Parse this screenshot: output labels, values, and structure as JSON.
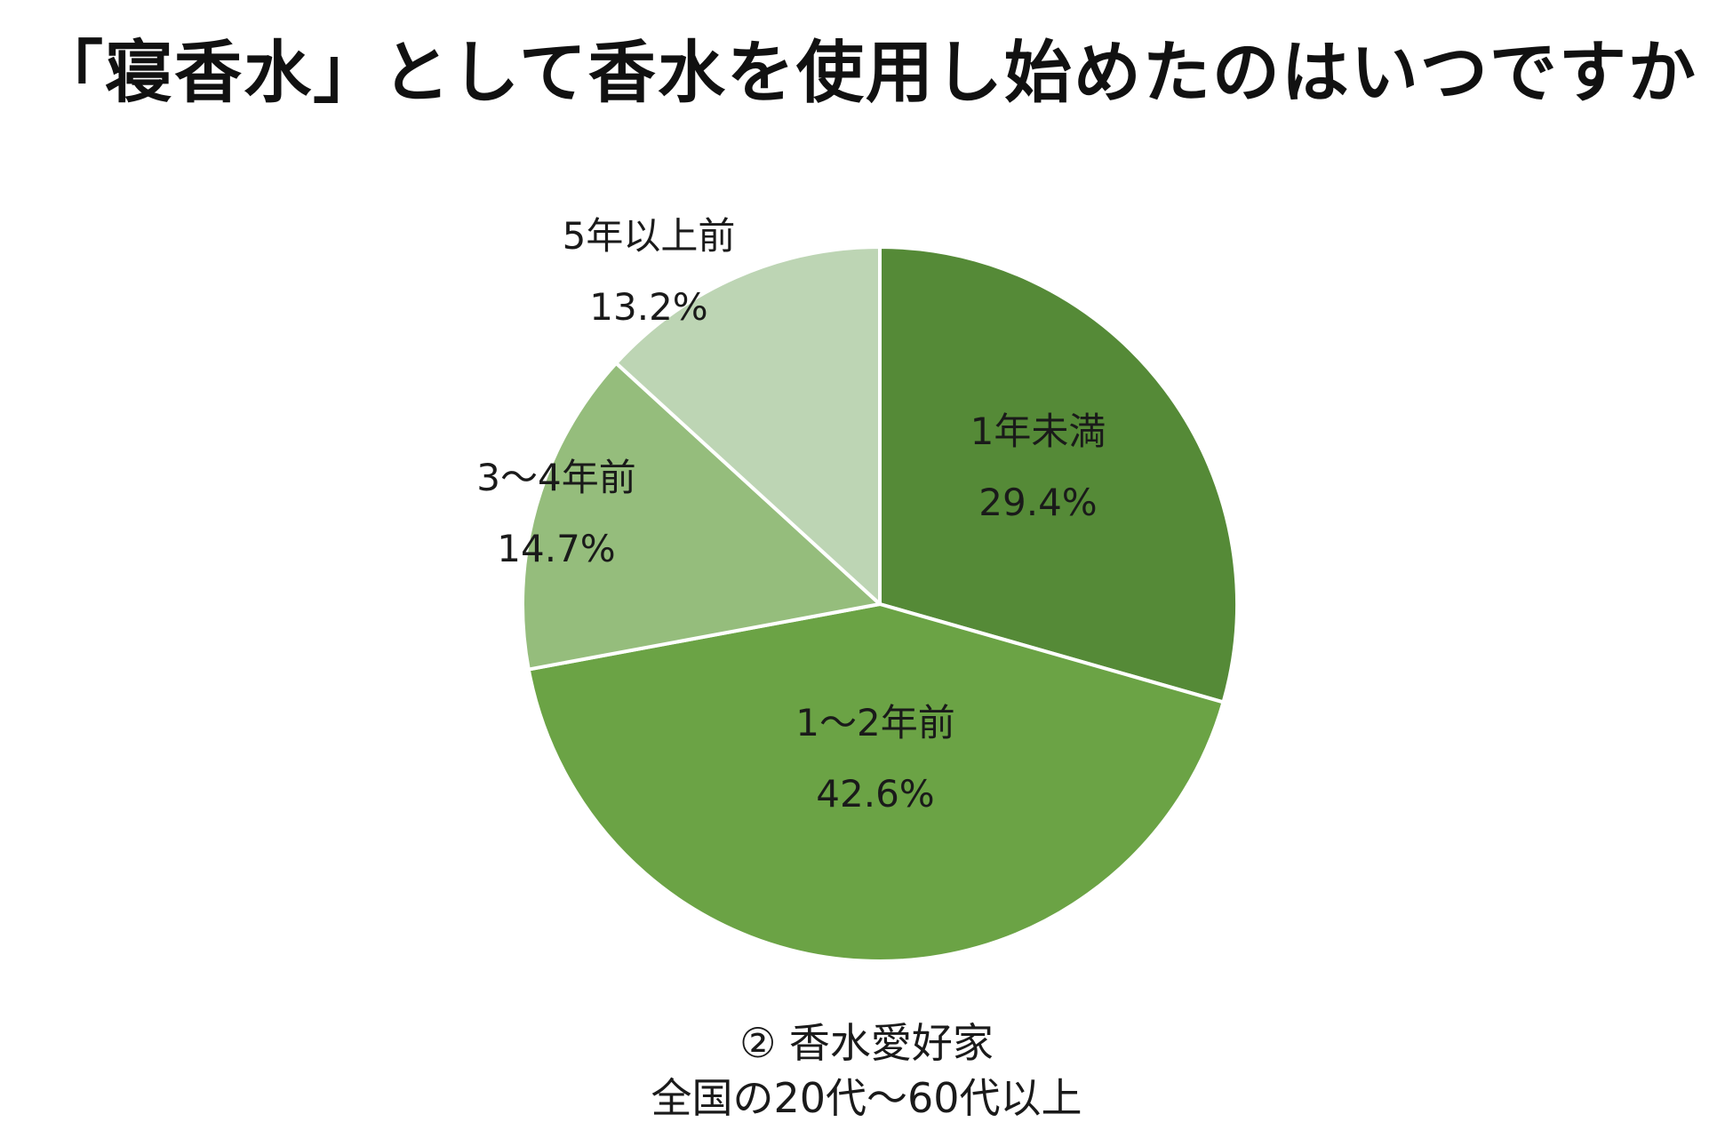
{
  "title": "「寝香水」として香水を使用し始めたのはいつですか",
  "caption": {
    "line1": "② 香水愛好家",
    "line2": "全国の20代〜60代以上"
  },
  "chart_data": {
    "type": "pie",
    "title": "「寝香水」として香水を使用し始めたのはいつですか",
    "slices": [
      {
        "label": "1年未満",
        "value": 29.4,
        "value_label": "29.4%",
        "color": "#558a37"
      },
      {
        "label": "1〜2年前",
        "value": 42.6,
        "value_label": "42.6%",
        "color": "#6ba345"
      },
      {
        "label": "3〜4年前",
        "value": 14.7,
        "value_label": "14.7%",
        "color": "#95bd7c"
      },
      {
        "label": "5年以上前",
        "value": 13.2,
        "value_label": "13.2%",
        "color": "#bdd5b4"
      }
    ],
    "start": "12 o'clock",
    "direction": "clockwise",
    "slice_border_color": "#ffffff",
    "labels": "inside or beside slices",
    "legend": "none"
  }
}
